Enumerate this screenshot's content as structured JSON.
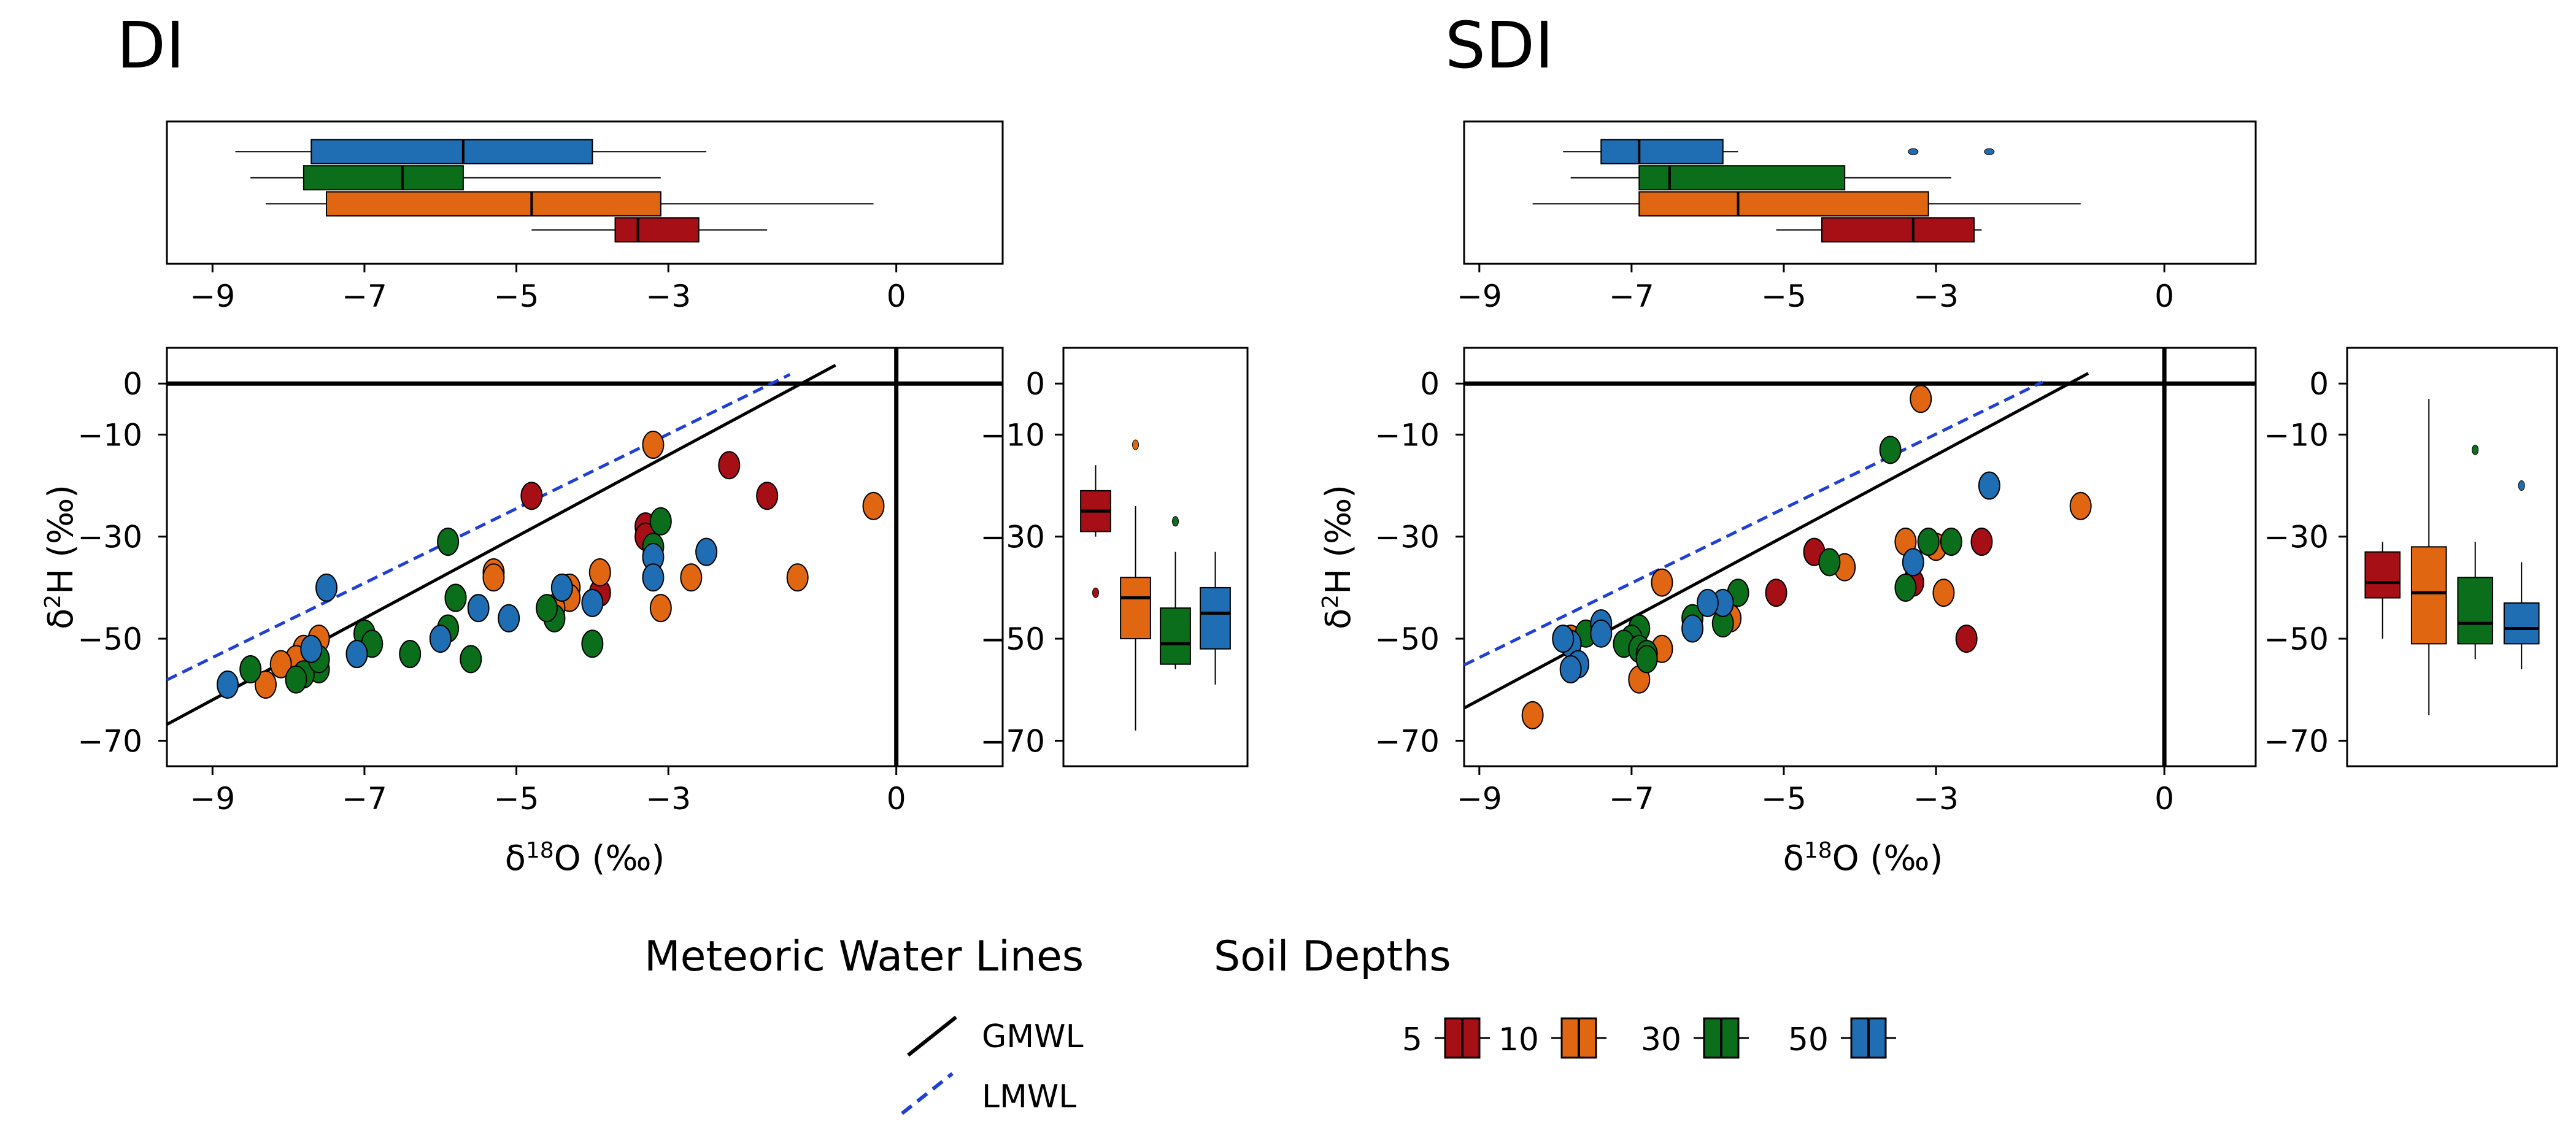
{
  "chart_data": [
    {
      "type": "scatter",
      "panel": "DI",
      "title": "DI",
      "xlabel_main": "δ",
      "xlabel_sup": "18",
      "xlabel_tail": "O (‰)",
      "ylabel_main": "δ",
      "ylabel_sup": "2",
      "ylabel_tail": "H (‰)",
      "xlim": [
        -9.6,
        1.4
      ],
      "ylim": [
        -75,
        7
      ],
      "xticks": [
        -9,
        -7,
        -5,
        -3,
        0
      ],
      "xtick_labels": [
        "−9",
        "−7",
        "−5",
        "−3",
        "0"
      ],
      "yticks": [
        0,
        -10,
        -30,
        -50,
        -70
      ],
      "ytick_labels": [
        "0",
        "−10",
        "−30",
        "−50",
        "−70"
      ],
      "reference_lines": {
        "x": 0,
        "y": 0
      },
      "lines": [
        {
          "name": "GMWL",
          "slope": 8,
          "intercept": 10,
          "style": "solid",
          "color": "#000000",
          "x_range": [
            -9.6,
            -0.8
          ]
        },
        {
          "name": "LMWL",
          "slope": 7.3,
          "intercept": 12,
          "style": "dashed",
          "color": "#1f3fd6",
          "x_range": [
            -9.6,
            -1.4
          ]
        }
      ],
      "series": [
        {
          "name": "5",
          "color": "#a50f15",
          "points": [
            [
              -2.2,
              -16
            ],
            [
              -1.7,
              -22
            ],
            [
              -4.8,
              -22
            ],
            [
              -3.3,
              -28
            ],
            [
              -3.3,
              -30
            ],
            [
              -3.9,
              -41
            ]
          ]
        },
        {
          "name": "10",
          "color": "#e06612",
          "points": [
            [
              -3.2,
              -12
            ],
            [
              -0.3,
              -24
            ],
            [
              -1.3,
              -38
            ],
            [
              -5.3,
              -37
            ],
            [
              -5.8,
              -42
            ],
            [
              -5.3,
              -38
            ],
            [
              -4.3,
              -40
            ],
            [
              -4.3,
              -42
            ],
            [
              -3.9,
              -37
            ],
            [
              -2.7,
              -38
            ],
            [
              -3.1,
              -44
            ],
            [
              -4.5,
              -44
            ],
            [
              -7.6,
              -50
            ],
            [
              -7.8,
              -52
            ],
            [
              -7.9,
              -54
            ],
            [
              -8.1,
              -55
            ],
            [
              -8.3,
              -59
            ]
          ]
        },
        {
          "name": "30",
          "color": "#0a6e1a",
          "points": [
            [
              -5.9,
              -31
            ],
            [
              -3.1,
              -27
            ],
            [
              -3.2,
              -32
            ],
            [
              -5.8,
              -42
            ],
            [
              -4.5,
              -46
            ],
            [
              -4.6,
              -44
            ],
            [
              -5.9,
              -48
            ],
            [
              -7.0,
              -49
            ],
            [
              -6.9,
              -51
            ],
            [
              -4.0,
              -51
            ],
            [
              -6.4,
              -53
            ],
            [
              -5.6,
              -54
            ],
            [
              -7.1,
              -53
            ],
            [
              -7.6,
              -56
            ],
            [
              -7.8,
              -57
            ],
            [
              -7.6,
              -54
            ],
            [
              -8.5,
              -56
            ],
            [
              -7.9,
              -58
            ]
          ]
        },
        {
          "name": "50",
          "color": "#1f6db2",
          "points": [
            [
              -7.5,
              -40
            ],
            [
              -4.4,
              -40
            ],
            [
              -2.5,
              -33
            ],
            [
              -3.2,
              -34
            ],
            [
              -3.2,
              -38
            ],
            [
              -4.0,
              -43
            ],
            [
              -5.5,
              -44
            ],
            [
              -5.1,
              -46
            ],
            [
              -6.0,
              -50
            ],
            [
              -7.7,
              -52
            ],
            [
              -7.1,
              -53
            ],
            [
              -8.8,
              -59
            ]
          ]
        }
      ],
      "top_boxplot": {
        "axis": "δ18O",
        "boxes": [
          {
            "name": "50",
            "q1": -7.7,
            "median": -5.7,
            "q3": -4.0,
            "whisker_low": -8.7,
            "whisker_high": -2.5
          },
          {
            "name": "30",
            "q1": -7.8,
            "median": -6.5,
            "q3": -5.7,
            "whisker_low": -8.5,
            "whisker_high": -3.1
          },
          {
            "name": "10",
            "q1": -7.5,
            "median": -4.8,
            "q3": -3.1,
            "whisker_low": -8.3,
            "whisker_high": -0.3
          },
          {
            "name": "5",
            "q1": -3.7,
            "median": -3.4,
            "q3": -2.6,
            "whisker_low": -4.8,
            "whisker_high": -1.7
          }
        ]
      },
      "side_boxplot": {
        "axis": "δ2H",
        "yticks": [
          0,
          -10,
          -30,
          -50,
          -70
        ],
        "ytick_labels": [
          "0",
          "−10",
          "−30",
          "−50",
          "−70"
        ],
        "boxes": [
          {
            "name": "5",
            "q1": -29,
            "median": -25,
            "q3": -21,
            "whisker_low": -30,
            "whisker_high": -16,
            "outliers": [
              -41
            ]
          },
          {
            "name": "10",
            "q1": -50,
            "median": -42,
            "q3": -38,
            "whisker_low": -68,
            "whisker_high": -24,
            "outliers": [
              -12
            ]
          },
          {
            "name": "30",
            "q1": -55,
            "median": -51,
            "q3": -44,
            "whisker_low": -56,
            "whisker_high": -33,
            "outliers": [
              -27
            ]
          },
          {
            "name": "50",
            "q1": -52,
            "median": -45,
            "q3": -40,
            "whisker_low": -59,
            "whisker_high": -33,
            "outliers": []
          }
        ]
      }
    },
    {
      "type": "scatter",
      "panel": "SDI",
      "title": "SDI",
      "xlabel_main": "δ",
      "xlabel_sup": "18",
      "xlabel_tail": "O (‰)",
      "ylabel_main": "δ",
      "ylabel_sup": "2",
      "ylabel_tail": "H (‰)",
      "xlim": [
        -9.2,
        1.2
      ],
      "ylim": [
        -75,
        7
      ],
      "xticks": [
        -9,
        -7,
        -5,
        -3,
        0
      ],
      "xtick_labels": [
        "−9",
        "−7",
        "−5",
        "−3",
        "0"
      ],
      "yticks": [
        0,
        -10,
        -30,
        -50,
        -70
      ],
      "ytick_labels": [
        "0",
        "−10",
        "−30",
        "−50",
        "−70"
      ],
      "reference_lines": {
        "x": 0,
        "y": 0
      },
      "lines": [
        {
          "name": "GMWL",
          "slope": 8,
          "intercept": 10,
          "style": "solid",
          "color": "#000000",
          "x_range": [
            -9.2,
            -1.0
          ]
        },
        {
          "name": "LMWL",
          "slope": 7.3,
          "intercept": 12,
          "style": "dashed",
          "color": "#1f3fd6",
          "x_range": [
            -9.2,
            -1.6
          ]
        }
      ],
      "series": [
        {
          "name": "5",
          "color": "#a50f15",
          "points": [
            [
              -2.4,
              -31
            ],
            [
              -3.3,
              -39
            ],
            [
              -4.6,
              -33
            ],
            [
              -5.1,
              -41
            ],
            [
              -2.6,
              -50
            ]
          ]
        },
        {
          "name": "10",
          "color": "#e06612",
          "points": [
            [
              -3.2,
              -3
            ],
            [
              -1.1,
              -24
            ],
            [
              -3.4,
              -31
            ],
            [
              -3.0,
              -32
            ],
            [
              -4.2,
              -36
            ],
            [
              -6.6,
              -39
            ],
            [
              -5.7,
              -46
            ],
            [
              -2.9,
              -41
            ],
            [
              -6.9,
              -58
            ],
            [
              -8.3,
              -65
            ],
            [
              -7.8,
              -50
            ],
            [
              -6.6,
              -52
            ]
          ]
        },
        {
          "name": "30",
          "color": "#0a6e1a",
          "points": [
            [
              -3.6,
              -13
            ],
            [
              -2.8,
              -31
            ],
            [
              -3.1,
              -31
            ],
            [
              -4.4,
              -35
            ],
            [
              -3.4,
              -40
            ],
            [
              -5.6,
              -41
            ],
            [
              -5.8,
              -47
            ],
            [
              -6.2,
              -46
            ],
            [
              -6.9,
              -48
            ],
            [
              -7.0,
              -50
            ],
            [
              -7.1,
              -51
            ],
            [
              -7.6,
              -49
            ],
            [
              -6.9,
              -52
            ],
            [
              -6.8,
              -53
            ],
            [
              -6.8,
              -54
            ]
          ]
        },
        {
          "name": "50",
          "color": "#1f6db2",
          "points": [
            [
              -2.3,
              -20
            ],
            [
              -3.3,
              -35
            ],
            [
              -5.8,
              -43
            ],
            [
              -6.0,
              -43
            ],
            [
              -6.2,
              -48
            ],
            [
              -7.4,
              -47
            ],
            [
              -7.4,
              -49
            ],
            [
              -7.8,
              -51
            ],
            [
              -7.7,
              -55
            ],
            [
              -7.8,
              -56
            ],
            [
              -7.9,
              -50
            ]
          ]
        }
      ],
      "top_boxplot": {
        "axis": "δ18O",
        "boxes": [
          {
            "name": "50",
            "q1": -7.4,
            "median": -6.9,
            "q3": -5.8,
            "whisker_low": -7.9,
            "whisker_high": -5.6,
            "outliers": [
              -3.3,
              -2.3
            ]
          },
          {
            "name": "30",
            "q1": -6.9,
            "median": -6.5,
            "q3": -4.2,
            "whisker_low": -7.8,
            "whisker_high": -2.8,
            "outliers": []
          },
          {
            "name": "10",
            "q1": -6.9,
            "median": -5.6,
            "q3": -3.1,
            "whisker_low": -8.3,
            "whisker_high": -1.1,
            "outliers": []
          },
          {
            "name": "5",
            "q1": -4.5,
            "median": -3.3,
            "q3": -2.5,
            "whisker_low": -5.1,
            "whisker_high": -2.4,
            "outliers": []
          }
        ]
      },
      "side_boxplot": {
        "axis": "δ2H",
        "yticks": [
          0,
          -10,
          -30,
          -50,
          -70
        ],
        "ytick_labels": [
          "0",
          "−10",
          "−30",
          "−50",
          "−70"
        ],
        "boxes": [
          {
            "name": "5",
            "q1": -42,
            "median": -39,
            "q3": -33,
            "whisker_low": -50,
            "whisker_high": -31,
            "outliers": []
          },
          {
            "name": "10",
            "q1": -51,
            "median": -41,
            "q3": -32,
            "whisker_low": -65,
            "whisker_high": -3,
            "outliers": []
          },
          {
            "name": "30",
            "q1": -51,
            "median": -47,
            "q3": -38,
            "whisker_low": -54,
            "whisker_high": -31,
            "outliers": [
              -13
            ]
          },
          {
            "name": "50",
            "q1": -51,
            "median": -48,
            "q3": -43,
            "whisker_low": -56,
            "whisker_high": -35,
            "outliers": [
              -20
            ]
          }
        ]
      }
    }
  ],
  "legend": {
    "lines_title": "Meteoric Water Lines",
    "depths_title": "Soil Depths",
    "gmwl_label": "GMWL",
    "lmwl_label": "LMWL",
    "depths": [
      {
        "label": "5",
        "color": "#a50f15"
      },
      {
        "label": "10",
        "color": "#e06612"
      },
      {
        "label": "30",
        "color": "#0a6e1a"
      },
      {
        "label": "50",
        "color": "#1f6db2"
      }
    ]
  }
}
